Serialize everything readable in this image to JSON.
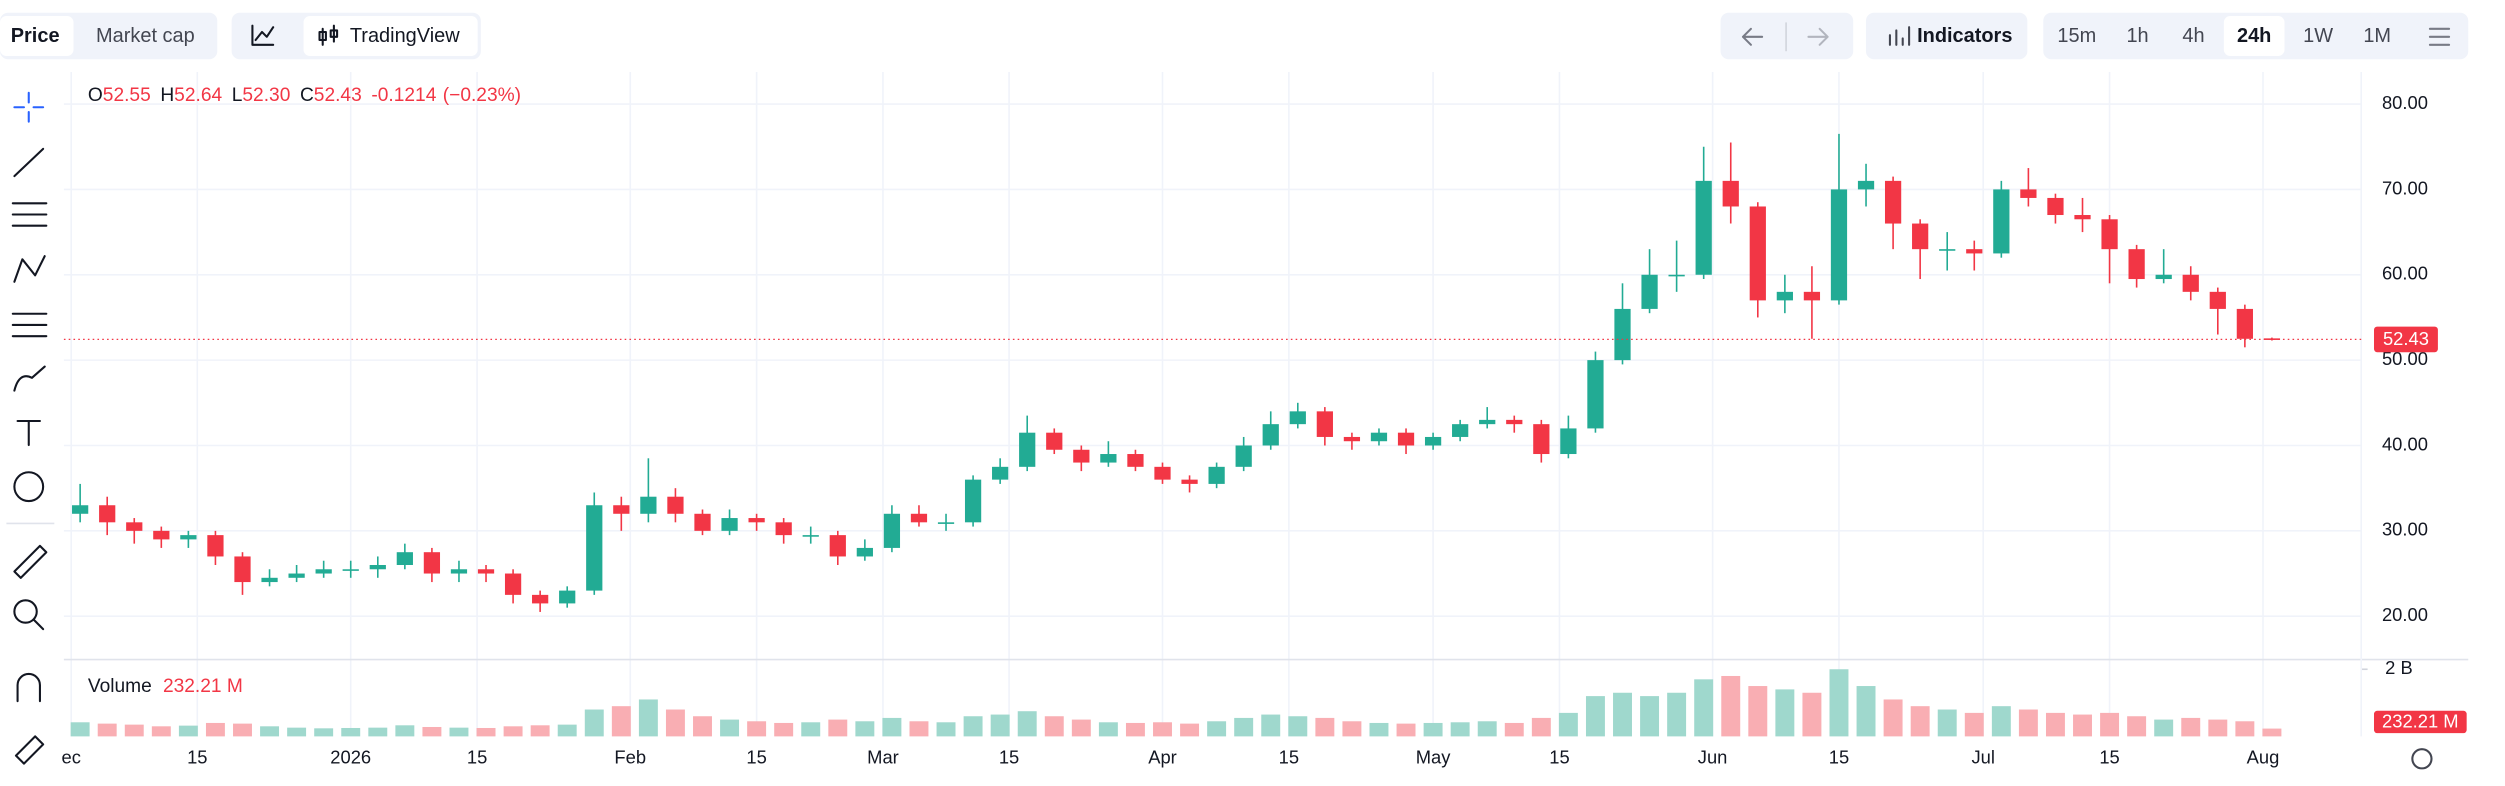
{
  "toolbar": {
    "tabs": [
      "Price",
      "Market cap"
    ],
    "selected_tab": "Price",
    "brand": "TradingView",
    "indicators": "Indicators",
    "intervals": [
      "15m",
      "1h",
      "4h",
      "24h",
      "1W",
      "1M"
    ],
    "selected_interval": "24h"
  },
  "chart_data": {
    "type": "candlestick",
    "ohlc_legend": {
      "labels": [
        "O",
        "H",
        "L",
        "C"
      ],
      "values": [
        52.55,
        52.64,
        52.3,
        52.43
      ],
      "value_labels": [
        "52.55",
        "52.64",
        "52.30",
        "52.43"
      ],
      "change": -0.1214,
      "change_pct": -0.23,
      "change_pct_label": "(−0.23%)"
    },
    "open": [
      32,
      33,
      31,
      30,
      29,
      29.5,
      27,
      24,
      24.5,
      25,
      25.5,
      25.5,
      26,
      27.5,
      25,
      25.5,
      25,
      22.5,
      21.5,
      23,
      33,
      32,
      34,
      32,
      30,
      31.5,
      31,
      29.5,
      29.5,
      27,
      28,
      32,
      31,
      31,
      36,
      37.5,
      41.5,
      39.5,
      38,
      39,
      37.5,
      36,
      35.5,
      37.5,
      40,
      42.5,
      44,
      41,
      40.5,
      41.5,
      40,
      41,
      42.5,
      43,
      42.5,
      39,
      42,
      50,
      56,
      60,
      60,
      71,
      68,
      57,
      58,
      57,
      70,
      71,
      66,
      63,
      63,
      62.5,
      70,
      69,
      67,
      66.5,
      63,
      59.5,
      60,
      58,
      56,
      52.55
    ],
    "high": [
      35.5,
      34,
      31.5,
      30.5,
      30,
      30,
      27.5,
      25.5,
      26,
      26.5,
      26.5,
      27,
      28.5,
      28,
      26.5,
      26,
      25.5,
      23,
      23.5,
      34.5,
      34,
      38.5,
      35,
      32.5,
      32.5,
      32,
      31.5,
      30.5,
      30,
      29,
      33,
      33,
      32,
      36.5,
      38.5,
      43.5,
      42,
      40,
      40.5,
      39.5,
      38,
      36.5,
      38,
      41,
      44,
      45,
      44.5,
      41.5,
      42,
      42,
      41.5,
      43,
      44.5,
      43.5,
      43,
      43.5,
      51,
      59,
      63,
      64,
      75,
      75.5,
      68.5,
      60,
      61,
      76.5,
      73,
      71.5,
      66.5,
      65,
      64,
      71,
      72.5,
      69.5,
      69,
      67,
      63.5,
      63,
      61,
      58.5,
      56.5,
      52.64
    ],
    "low": [
      31,
      29.5,
      28.5,
      28,
      28,
      26,
      22.5,
      23.5,
      24,
      24.5,
      24.5,
      24.5,
      25.5,
      24,
      24,
      24,
      21.5,
      20.5,
      21,
      22.5,
      30,
      31,
      31,
      29.5,
      29.5,
      30,
      28.5,
      28.5,
      26,
      26.5,
      27.5,
      30.5,
      30,
      30.5,
      35.5,
      37,
      39,
      37,
      37.5,
      37,
      35.5,
      34.5,
      35,
      37,
      39.5,
      42,
      40,
      39.5,
      40,
      39,
      39.5,
      40.5,
      42,
      41.5,
      38,
      38.5,
      41.5,
      49.5,
      55.5,
      58,
      59.5,
      66,
      55,
      55.5,
      52.5,
      56.5,
      68,
      63,
      59.5,
      60.5,
      60.5,
      62,
      68,
      66,
      65,
      59,
      58.5,
      59,
      57,
      53,
      51.5,
      52.3
    ],
    "close": [
      33,
      31,
      30,
      29,
      29.5,
      27,
      24,
      24.5,
      25,
      25.5,
      25.5,
      26,
      27.5,
      25,
      25.5,
      25,
      22.5,
      21.5,
      23,
      33,
      32,
      34,
      32,
      30,
      31.5,
      31,
      29.5,
      29.5,
      27,
      28,
      32,
      31,
      31,
      36,
      37.5,
      41.5,
      39.5,
      38,
      39,
      37.5,
      36,
      35.5,
      37.5,
      40,
      42.5,
      44,
      41,
      40.5,
      41.5,
      40,
      41,
      42.5,
      43,
      42.5,
      39,
      42,
      50,
      56,
      60,
      60,
      71,
      68,
      57,
      58,
      57,
      70,
      71,
      66,
      63,
      63,
      62.5,
      70,
      69,
      67,
      66.5,
      63,
      59.5,
      60,
      58,
      56,
      52.5,
      52.43
    ],
    "volume_title": "Volume",
    "volume": [
      420,
      380,
      350,
      300,
      320,
      400,
      380,
      300,
      260,
      240,
      250,
      260,
      330,
      280,
      260,
      250,
      300,
      330,
      350,
      800,
      900,
      1100,
      800,
      600,
      500,
      450,
      400,
      420,
      500,
      450,
      550,
      450,
      420,
      600,
      650,
      750,
      600,
      500,
      420,
      400,
      420,
      380,
      450,
      550,
      650,
      600,
      550,
      450,
      400,
      380,
      400,
      420,
      450,
      400,
      550,
      700,
      1200,
      1300,
      1200,
      1300,
      1700,
      1800,
      1500,
      1400,
      1300,
      2000,
      1500,
      1100,
      900,
      800,
      700,
      900,
      800,
      700,
      650,
      700,
      600,
      500,
      550,
      500,
      450,
      232.21
    ],
    "volume_last_label": "232.21 M",
    "xlim": [
      -0.6,
      84.3
    ],
    "xticks": [
      {
        "value": -0.33,
        "label": "ec"
      },
      {
        "value": 4.33,
        "label": "15"
      },
      {
        "value": 10,
        "label": "2026"
      },
      {
        "value": 14.67,
        "label": "15"
      },
      {
        "value": 20.33,
        "label": "Feb"
      },
      {
        "value": 25,
        "label": "15"
      },
      {
        "value": 29.67,
        "label": "Mar"
      },
      {
        "value": 34.33,
        "label": "15"
      },
      {
        "value": 40,
        "label": "Apr"
      },
      {
        "value": 44.67,
        "label": "15"
      },
      {
        "value": 50,
        "label": "May"
      },
      {
        "value": 54.67,
        "label": "15"
      },
      {
        "value": 60.33,
        "label": "Jun"
      },
      {
        "value": 65,
        "label": "15"
      },
      {
        "value": 70.33,
        "label": "Jul"
      },
      {
        "value": 75,
        "label": "15"
      },
      {
        "value": 80.67,
        "label": "Aug"
      }
    ],
    "ylim": [
      15.3,
      83.75
    ],
    "yticks": [
      {
        "value": 20,
        "label": "20.00"
      },
      {
        "value": 30,
        "label": "30.00"
      },
      {
        "value": 40,
        "label": "40.00"
      },
      {
        "value": 50,
        "label": "50.00"
      },
      {
        "value": 60,
        "label": "60.00"
      },
      {
        "value": 70,
        "label": "70.00"
      },
      {
        "value": 80,
        "label": "80.00"
      }
    ],
    "y2lim": [
      0,
      2290
    ],
    "y2ticks": [
      {
        "value": 2000,
        "label": "2 B"
      }
    ],
    "grid": true,
    "up_color": "#22ab94",
    "down_color": "#f23645",
    "volume_up_color": "#9fd8cd",
    "volume_down_color": "#f9aeb3"
  }
}
